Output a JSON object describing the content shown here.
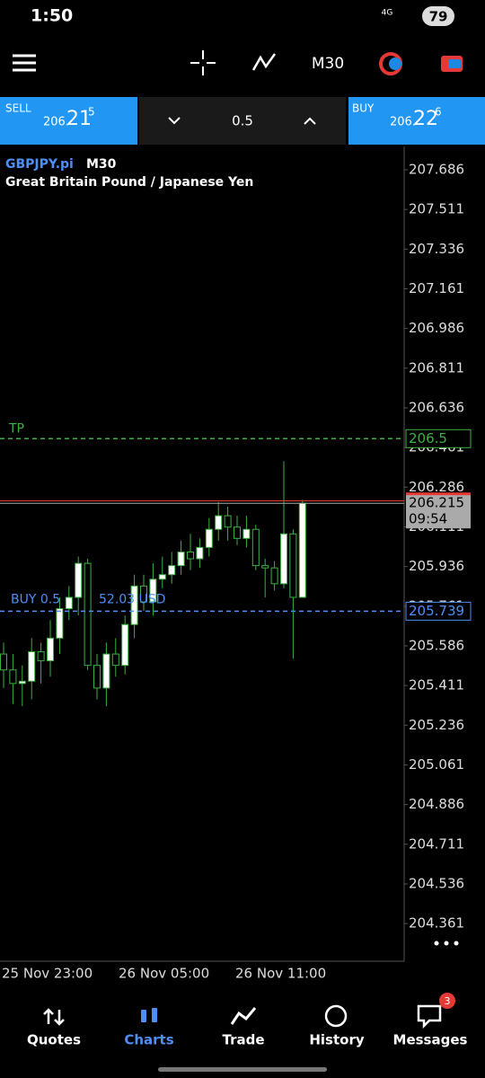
{
  "status_bar": {
    "time": "1:50",
    "network": "4G",
    "battery": "79"
  },
  "toolbar": {
    "timeframe": "M30"
  },
  "trade_panel": {
    "sell": {
      "label": "SELL",
      "price_a": "206.",
      "price_b": "21",
      "price_c": "5"
    },
    "volume": "0.5",
    "buy": {
      "label": "BUY",
      "price_a": "206.",
      "price_b": "22",
      "price_c": "6"
    }
  },
  "chart": {
    "type": "candlestick",
    "symbol": "GBPJPY.pi",
    "timeframe": "M30",
    "description": "Great Britain Pound / Japanese Yen",
    "ylim": [
      204.195,
      207.789
    ],
    "yticks": [
      207.686,
      207.511,
      207.336,
      207.161,
      206.986,
      206.811,
      206.636,
      206.461,
      206.286,
      206.111,
      205.936,
      205.761,
      205.586,
      205.411,
      205.236,
      205.061,
      204.886,
      204.711,
      204.536,
      204.361
    ],
    "x_labels": [
      "25 Nov 23:00",
      "26 Nov 05:00",
      "26 Nov 11:00"
    ],
    "open": [
      205.55,
      205.48,
      205.42,
      205.43,
      205.56,
      205.52,
      205.62,
      205.75,
      205.8,
      205.95,
      205.5,
      205.4,
      205.55,
      205.5,
      205.68,
      205.85,
      205.78,
      205.88,
      205.9,
      205.94,
      206.0,
      205.97,
      206.02,
      206.1,
      206.16,
      206.11,
      206.06,
      206.1,
      205.94,
      205.93,
      205.86,
      206.08,
      205.8
    ],
    "high": [
      205.6,
      205.55,
      205.5,
      205.62,
      205.6,
      205.7,
      205.8,
      205.85,
      205.98,
      205.97,
      205.55,
      205.6,
      205.62,
      205.72,
      205.9,
      205.9,
      205.95,
      205.98,
      206.0,
      206.05,
      206.08,
      206.06,
      206.15,
      206.22,
      206.2,
      206.16,
      206.16,
      206.12,
      205.97,
      205.96,
      206.4,
      206.1,
      206.23
    ],
    "low": [
      205.4,
      205.33,
      205.32,
      205.35,
      205.42,
      205.45,
      205.55,
      205.7,
      205.72,
      205.48,
      205.35,
      205.32,
      205.45,
      205.46,
      205.62,
      205.74,
      205.72,
      205.84,
      205.86,
      205.9,
      205.92,
      205.93,
      205.98,
      206.05,
      206.05,
      206.03,
      206.02,
      205.92,
      205.8,
      205.83,
      205.84,
      205.53,
      205.8
    ],
    "close": [
      205.48,
      205.42,
      205.43,
      205.56,
      205.52,
      205.62,
      205.75,
      205.8,
      205.95,
      205.5,
      205.4,
      205.55,
      205.5,
      205.68,
      205.85,
      205.78,
      205.88,
      205.9,
      205.94,
      206.0,
      205.97,
      206.02,
      206.1,
      206.16,
      206.11,
      206.06,
      206.1,
      205.94,
      205.93,
      205.86,
      206.08,
      205.8,
      206.215
    ],
    "take_profit": {
      "label": "TP",
      "value": 206.5
    },
    "bid": 206.215,
    "ask": 206.226,
    "countdown": "09:54",
    "position": {
      "label": "BUY 0.5",
      "profit": "52.03 USD",
      "value": 205.739
    }
  },
  "bottom_nav": {
    "items": [
      "Quotes",
      "Charts",
      "Trade",
      "History",
      "Messages"
    ],
    "badge": "3"
  }
}
